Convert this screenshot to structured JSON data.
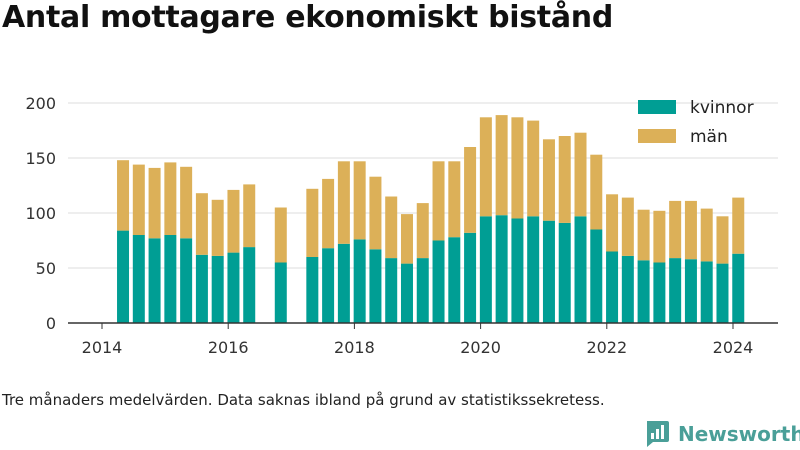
{
  "title": "Antal mottagare ekonomiskt bistånd",
  "caption": "Tre månaders medelvärden. Data saknas ibland på grund av statistikssekretess.",
  "brand": {
    "name": "Newsworthy",
    "color": "#4a9f98"
  },
  "colors": {
    "kvinnor": "#009e94",
    "man": "#dcb058",
    "axis": "#333333",
    "grid": "#dddddd"
  },
  "chart_data": {
    "type": "bar",
    "stacked": true,
    "title": "Antal mottagare ekonomiskt bistånd",
    "xlabel": "",
    "ylabel": "",
    "ylim": [
      0,
      200
    ],
    "yticks": [
      0,
      50,
      100,
      150,
      200
    ],
    "xticks": [
      "2014",
      "2016",
      "2018",
      "2020",
      "2022",
      "2024"
    ],
    "grid": true,
    "legend": "top-right",
    "categories": [
      "2014-05",
      "2014-08",
      "2014-11",
      "2015-02",
      "2015-05",
      "2015-08",
      "2015-11",
      "2016-02",
      "2016-05",
      "2016-08",
      "2016-11",
      "2017-02",
      "2017-05",
      "2017-08",
      "2017-11",
      "2018-02",
      "2018-05",
      "2018-08",
      "2018-11",
      "2019-02",
      "2019-05",
      "2019-08",
      "2019-11",
      "2020-02",
      "2020-05",
      "2020-08",
      "2020-11",
      "2021-02",
      "2021-05",
      "2021-08",
      "2021-11",
      "2022-02",
      "2022-05",
      "2022-08",
      "2022-11",
      "2023-02",
      "2023-05",
      "2023-08",
      "2023-11",
      "2024-02"
    ],
    "series": [
      {
        "name": "kvinnor",
        "values": [
          84,
          80,
          77,
          80,
          77,
          62,
          61,
          64,
          69,
          null,
          55,
          null,
          60,
          68,
          72,
          76,
          67,
          59,
          54,
          59,
          75,
          78,
          82,
          97,
          98,
          95,
          97,
          93,
          91,
          97,
          85,
          65,
          61,
          57,
          55,
          59,
          58,
          56,
          54,
          63
        ]
      },
      {
        "name": "män",
        "values": [
          64,
          64,
          64,
          66,
          65,
          56,
          51,
          57,
          57,
          null,
          50,
          null,
          62,
          63,
          75,
          71,
          66,
          56,
          45,
          50,
          72,
          69,
          78,
          90,
          91,
          92,
          87,
          74,
          79,
          76,
          68,
          52,
          53,
          46,
          47,
          52,
          53,
          48,
          43,
          51
        ]
      }
    ]
  }
}
